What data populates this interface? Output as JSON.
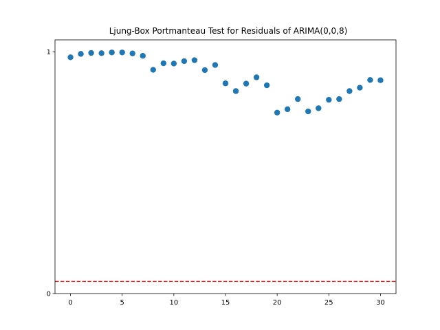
{
  "chart_data": {
    "type": "scatter",
    "title": "Ljung-Box Portmanteau Test for Residuals of ARIMA(0,0,8)",
    "xlabel": "",
    "ylabel": "",
    "xlim": [
      -1.5,
      31.5
    ],
    "ylim": [
      0,
      1.05
    ],
    "x_ticks": [
      0,
      5,
      10,
      15,
      20,
      25,
      30
    ],
    "x_tick_labels": [
      "0",
      "5",
      "10",
      "15",
      "20",
      "25",
      "30"
    ],
    "y_ticks": [
      0,
      1
    ],
    "y_tick_labels": [
      "0",
      "1"
    ],
    "grid": false,
    "series": [
      {
        "color": "#1f77b4",
        "x": [
          0,
          1,
          2,
          3,
          4,
          5,
          6,
          7,
          8,
          9,
          10,
          11,
          12,
          13,
          14,
          15,
          16,
          17,
          18,
          19,
          20,
          21,
          22,
          23,
          24,
          25,
          26,
          27,
          28,
          29,
          30
        ],
        "y": [
          0.978,
          0.992,
          0.996,
          0.995,
          0.998,
          0.998,
          0.994,
          0.984,
          0.926,
          0.953,
          0.952,
          0.962,
          0.966,
          0.925,
          0.946,
          0.87,
          0.838,
          0.869,
          0.895,
          0.862,
          0.749,
          0.763,
          0.805,
          0.754,
          0.767,
          0.802,
          0.805,
          0.838,
          0.852,
          0.884,
          0.883
        ]
      }
    ],
    "reference_line": {
      "y": 0.05,
      "color": "#d62728",
      "style": "dashed"
    }
  }
}
